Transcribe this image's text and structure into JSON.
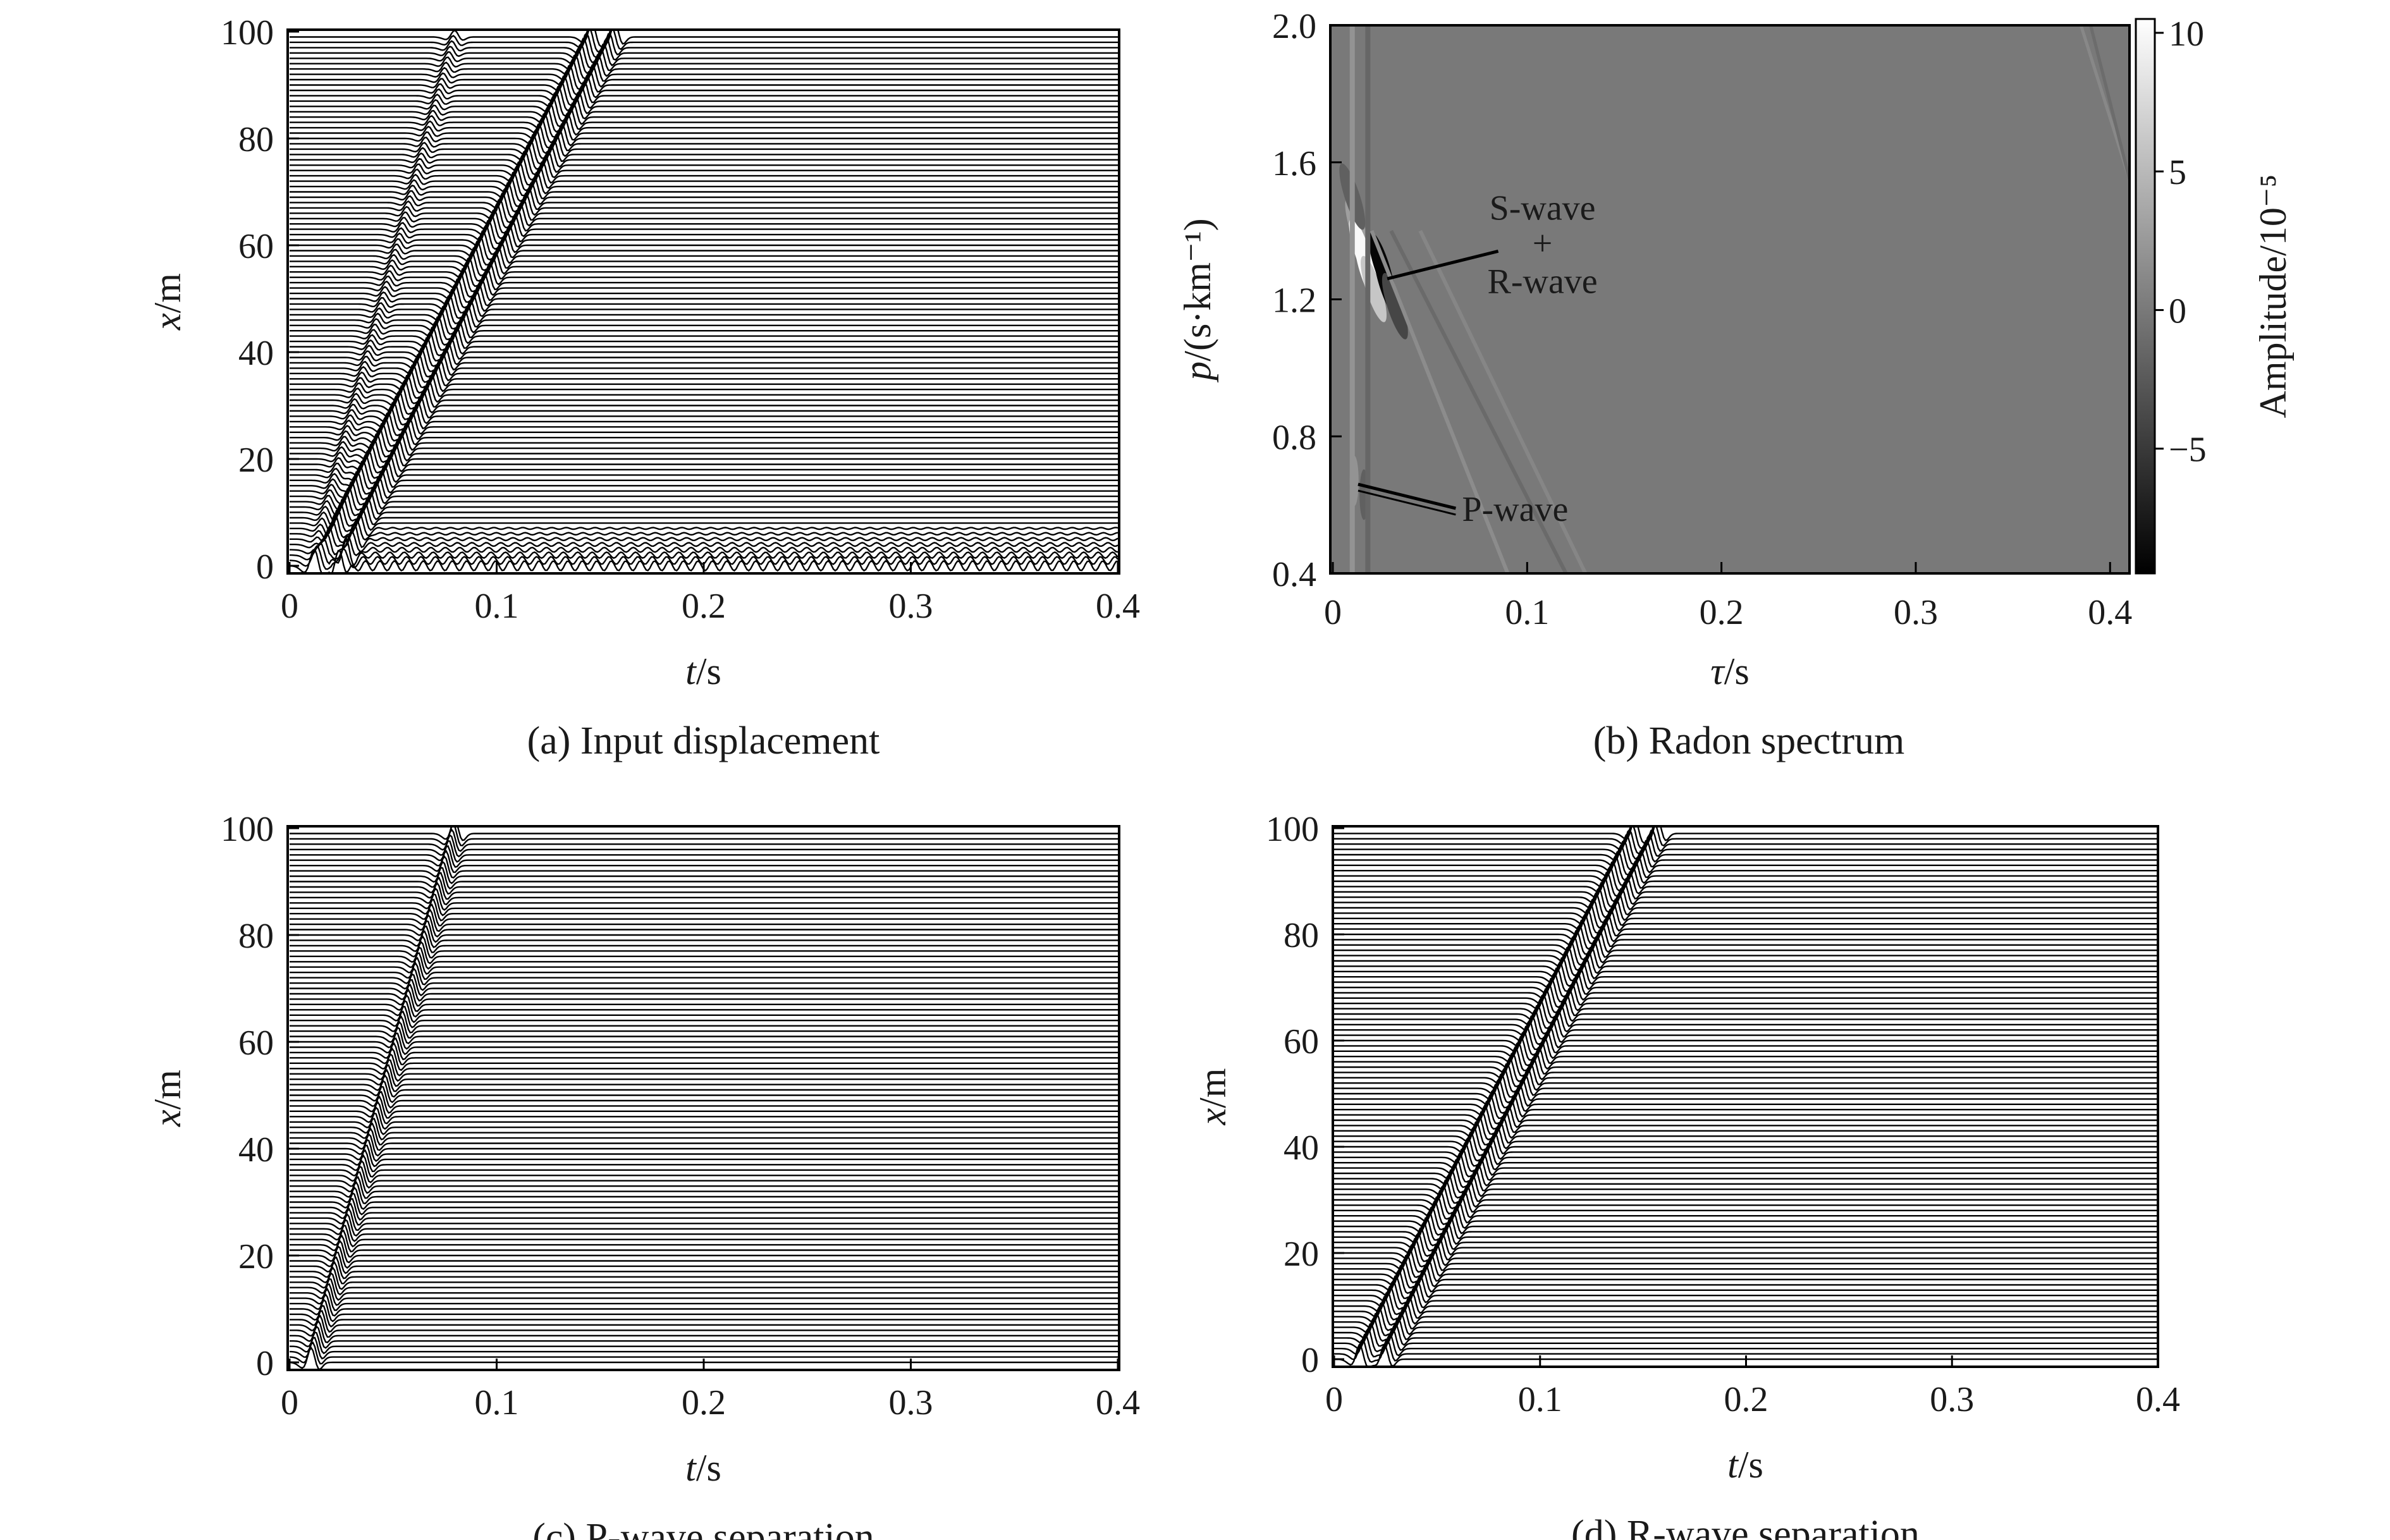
{
  "chart_data": [
    {
      "panel": "a",
      "type": "line",
      "caption": "(a) Input displacement",
      "xlabel_var": "t",
      "xlabel_unit": "/s",
      "ylabel_var": "x",
      "ylabel_unit": "/m",
      "xlim": [
        0,
        0.4
      ],
      "ylim": [
        0,
        100
      ],
      "xticks": [
        0,
        0.1,
        0.2,
        0.3,
        0.4
      ],
      "xtick_labels": [
        "0",
        "0.1",
        "0.2",
        "0.3",
        "0.4"
      ],
      "yticks": [
        0,
        20,
        40,
        60,
        80,
        100
      ],
      "ytick_labels": [
        "0",
        "20",
        "40",
        "60",
        "80",
        "100"
      ],
      "trace_offsets_m": {
        "start": 0,
        "end": 99,
        "step": 1
      },
      "arrivals": [
        {
          "wave": "P",
          "t0": 0.01,
          "t100": 0.08,
          "amplitude": 0.45
        },
        {
          "wave": "S",
          "t0": 0.012,
          "t100": 0.147,
          "amplitude": 1.0
        },
        {
          "wave": "R",
          "t0": 0.024,
          "t100": 0.158,
          "amplitude": 1.0
        }
      ],
      "near_offset_noise": {
        "x_max": 8,
        "t_range": [
          0.02,
          0.4
        ]
      }
    },
    {
      "panel": "b",
      "type": "heatmap",
      "caption": "(b) Radon spectrum",
      "xlabel_var": "τ",
      "xlabel_unit": "/s",
      "ylabel_var": "p",
      "ylabel_unit": "/(s·km⁻¹)",
      "xlim": [
        0,
        0.41
      ],
      "ylim": [
        0.4,
        2.0
      ],
      "xticks": [
        0,
        0.1,
        0.2,
        0.3,
        0.4
      ],
      "xtick_labels": [
        "0",
        "0.1",
        "0.2",
        "0.3",
        "0.4"
      ],
      "yticks": [
        0.4,
        0.8,
        1.2,
        1.6,
        2.0
      ],
      "ytick_labels": [
        "0.4",
        "0.8",
        "1.2",
        "1.6",
        "2.0"
      ],
      "colorbar": {
        "label": "Amplitude/10⁻⁵",
        "range": [
          -9.5,
          10.5
        ],
        "ticks": [
          10,
          5,
          0,
          -5
        ],
        "tick_labels": [
          "10",
          "5",
          "0",
          "−5"
        ],
        "colormap": "gray"
      },
      "background_value": 0,
      "features": [
        {
          "name": "S-wave + R-wave focus",
          "tau": 0.025,
          "p": 1.28,
          "value_pos": 10,
          "value_neg": -9
        },
        {
          "name": "P-wave focus",
          "tau": 0.014,
          "p": 0.65,
          "value_pos": 2,
          "value_neg": -2
        }
      ],
      "annotations": [
        {
          "text_lines": [
            "S-wave",
            "+",
            "R-wave"
          ],
          "tau": 0.09,
          "p": 1.3,
          "points_to": {
            "tau": 0.028,
            "p": 1.26
          }
        },
        {
          "text_lines": [
            "P-wave"
          ],
          "tau": 0.06,
          "p": 0.59,
          "points_to": {
            "tau": 0.013,
            "p": 0.66
          }
        }
      ]
    },
    {
      "panel": "c",
      "type": "line",
      "caption": "(c) P-wave separation",
      "xlabel_var": "t",
      "xlabel_unit": "/s",
      "ylabel_var": "x",
      "ylabel_unit": "/m",
      "xlim": [
        0,
        0.4
      ],
      "ylim": [
        0,
        100
      ],
      "xticks": [
        0,
        0.1,
        0.2,
        0.3,
        0.4
      ],
      "xtick_labels": [
        "0",
        "0.1",
        "0.2",
        "0.3",
        "0.4"
      ],
      "yticks": [
        0,
        20,
        40,
        60,
        80,
        100
      ],
      "ytick_labels": [
        "0",
        "20",
        "40",
        "60",
        "80",
        "100"
      ],
      "trace_offsets_m": {
        "start": 0,
        "end": 99,
        "step": 1
      },
      "arrivals": [
        {
          "wave": "P",
          "t0": 0.01,
          "t100": 0.08,
          "amplitude": 1.0
        }
      ]
    },
    {
      "panel": "d",
      "type": "line",
      "caption": "(d) R-wave separation",
      "xlabel_var": "t",
      "xlabel_unit": "/s",
      "ylabel_var": "x",
      "ylabel_unit": "/m",
      "xlim": [
        0,
        0.4
      ],
      "ylim": [
        0,
        100
      ],
      "xticks": [
        0,
        0.1,
        0.2,
        0.3,
        0.4
      ],
      "xtick_labels": [
        "0",
        "0.1",
        "0.2",
        "0.3",
        "0.4"
      ],
      "yticks": [
        0,
        20,
        40,
        60,
        80,
        100
      ],
      "ytick_labels": [
        "0",
        "20",
        "40",
        "60",
        "80",
        "100"
      ],
      "trace_offsets_m": {
        "start": 0,
        "end": 99,
        "step": 1
      },
      "arrivals": [
        {
          "wave": "S",
          "t0": 0.012,
          "t100": 0.147,
          "amplitude": 1.0
        },
        {
          "wave": "R",
          "t0": 0.024,
          "t100": 0.158,
          "amplitude": 1.0
        }
      ]
    }
  ]
}
